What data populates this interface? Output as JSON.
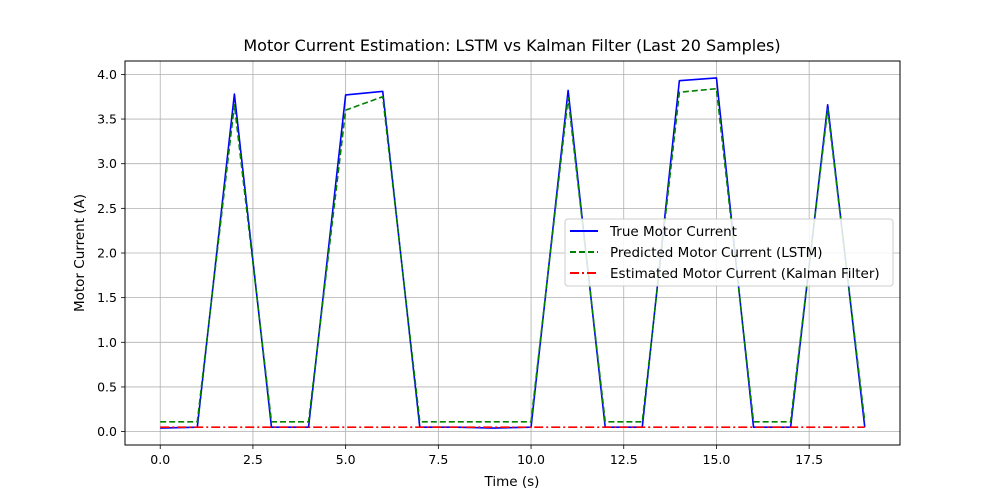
{
  "chart_data": {
    "type": "line",
    "title": "Motor Current Estimation: LSTM vs Kalman Filter (Last 20 Samples)",
    "xlabel": "Time (s)",
    "ylabel": "Motor Current (A)",
    "xlim": [
      -0.95,
      19.95
    ],
    "ylim": [
      -0.15,
      4.15
    ],
    "grid": true,
    "legend_position": "center-right",
    "x_ticks": [
      0.0,
      2.5,
      5.0,
      7.5,
      10.0,
      12.5,
      15.0,
      17.5
    ],
    "x_tick_labels": [
      "0.0",
      "2.5",
      "5.0",
      "7.5",
      "10.0",
      "12.5",
      "15.0",
      "17.5"
    ],
    "y_ticks": [
      0.0,
      0.5,
      1.0,
      1.5,
      2.0,
      2.5,
      3.0,
      3.5,
      4.0
    ],
    "y_tick_labels": [
      "0.0",
      "0.5",
      "1.0",
      "1.5",
      "2.0",
      "2.5",
      "3.0",
      "3.5",
      "4.0"
    ],
    "x": [
      0,
      1,
      2,
      3,
      4,
      5,
      6,
      7,
      8,
      9,
      10,
      11,
      12,
      13,
      14,
      15,
      16,
      17,
      18,
      19
    ],
    "series": [
      {
        "name": "True Motor Current",
        "color": "#0000ff",
        "dash": "solid",
        "values": [
          0.04,
          0.05,
          3.78,
          0.05,
          0.05,
          3.77,
          3.81,
          0.05,
          0.05,
          0.04,
          0.05,
          3.82,
          0.05,
          0.05,
          3.93,
          3.96,
          0.05,
          0.05,
          3.66,
          0.05
        ]
      },
      {
        "name": "Predicted Motor Current (LSTM)",
        "color": "#008000",
        "dash": "dashed",
        "values": [
          0.11,
          0.11,
          3.66,
          0.11,
          0.11,
          3.6,
          3.75,
          0.11,
          0.11,
          0.11,
          0.11,
          3.74,
          0.11,
          0.11,
          3.8,
          3.84,
          0.11,
          0.11,
          3.61,
          0.11
        ]
      },
      {
        "name": "Estimated Motor Current (Kalman Filter)",
        "color": "#ff0000",
        "dash": "dashdot",
        "values": [
          0.05,
          0.05,
          0.05,
          0.05,
          0.05,
          0.05,
          0.05,
          0.05,
          0.05,
          0.05,
          0.05,
          0.05,
          0.05,
          0.05,
          0.05,
          0.05,
          0.05,
          0.05,
          0.05,
          0.05
        ]
      }
    ]
  }
}
